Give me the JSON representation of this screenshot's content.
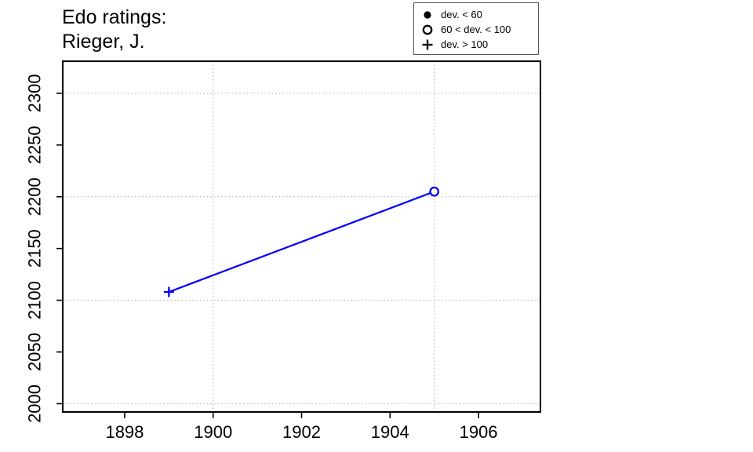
{
  "chart_data": {
    "type": "line",
    "title": "Edo ratings:",
    "subtitle": "Rieger, J.",
    "xlabel": "",
    "ylabel": "",
    "xlim": [
      1896.6,
      1907.4
    ],
    "ylim": [
      1992,
      2331
    ],
    "xticks": [
      1898,
      1900,
      1902,
      1904,
      1906
    ],
    "yticks": [
      2000,
      2050,
      2100,
      2150,
      2200,
      2250,
      2300
    ],
    "grid": {
      "style": "dotted",
      "color": "#aaaaaa",
      "x": [
        1900,
        1905
      ],
      "y": [
        2000,
        2100,
        2200,
        2300
      ]
    },
    "series": [
      {
        "name": "Edo rating",
        "color": "#0000ff",
        "x": [
          1899,
          1905
        ],
        "y": [
          2108,
          2205
        ],
        "point_symbols": [
          "plus",
          "open-circle"
        ]
      }
    ],
    "legend": {
      "position": "top-right",
      "items": [
        {
          "symbol": "filled-circle",
          "label": "dev. < 60"
        },
        {
          "symbol": "open-circle",
          "label": "60 < dev. < 100"
        },
        {
          "symbol": "plus",
          "label": "dev. > 100"
        }
      ]
    },
    "axis_color": "#000000",
    "background_color": "#ffffff"
  }
}
